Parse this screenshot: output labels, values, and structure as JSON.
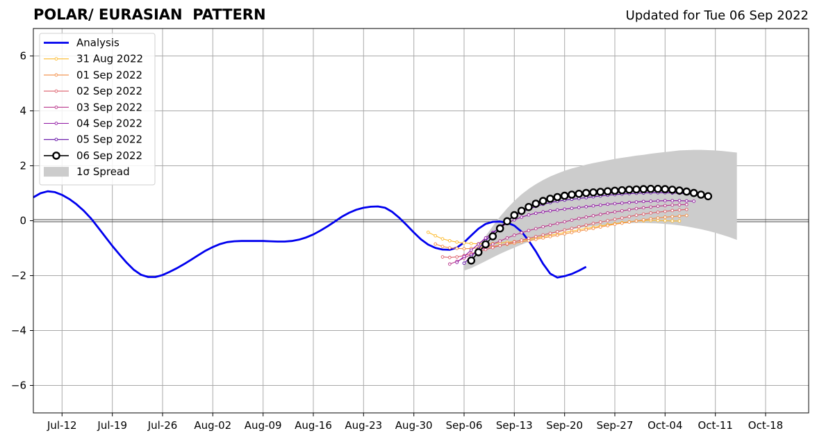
{
  "header": {
    "title": "POLAR/ EURASIAN  PATTERN",
    "updated": "Updated for Tue 06 Sep 2022"
  },
  "chart_data": {
    "type": "line",
    "title": "POLAR/ EURASIAN  PATTERN",
    "subtitle": "Updated for Tue 06 Sep 2022",
    "xlabel": "",
    "ylabel": "",
    "xlim": [
      "2022-07-08",
      "2022-10-24"
    ],
    "ylim": [
      -7,
      7
    ],
    "grid": true,
    "legend_position": "top-left",
    "x_ticks": [
      {
        "date": "2022-07-12",
        "label": "Jul-12"
      },
      {
        "date": "2022-07-19",
        "label": "Jul-19"
      },
      {
        "date": "2022-07-26",
        "label": "Jul-26"
      },
      {
        "date": "2022-08-02",
        "label": "Aug-02"
      },
      {
        "date": "2022-08-09",
        "label": "Aug-09"
      },
      {
        "date": "2022-08-16",
        "label": "Aug-16"
      },
      {
        "date": "2022-08-23",
        "label": "Aug-23"
      },
      {
        "date": "2022-08-30",
        "label": "Aug-30"
      },
      {
        "date": "2022-09-06",
        "label": "Sep-06"
      },
      {
        "date": "2022-09-13",
        "label": "Sep-13"
      },
      {
        "date": "2022-09-20",
        "label": "Sep-20"
      },
      {
        "date": "2022-09-27",
        "label": "Sep-27"
      },
      {
        "date": "2022-10-04",
        "label": "Oct-04"
      },
      {
        "date": "2022-10-11",
        "label": "Oct-11"
      },
      {
        "date": "2022-10-18",
        "label": "Oct-18"
      }
    ],
    "y_ticks": [
      {
        "value": 6,
        "label": "6"
      },
      {
        "value": 4,
        "label": "4"
      },
      {
        "value": 2,
        "label": "2"
      },
      {
        "value": 0,
        "label": "0"
      },
      {
        "value": -2,
        "label": "−2"
      },
      {
        "value": -4,
        "label": "−4"
      },
      {
        "value": -6,
        "label": "−6"
      }
    ],
    "legend": [
      {
        "label": "Analysis",
        "kind": "analysis",
        "color": "#0000ee"
      },
      {
        "label": "31 Aug 2022",
        "kind": "small",
        "color": "#fcb92a"
      },
      {
        "label": "01 Sep 2022",
        "kind": "small",
        "color": "#f28b42"
      },
      {
        "label": "02 Sep 2022",
        "kind": "small",
        "color": "#dc5b67"
      },
      {
        "label": "03 Sep 2022",
        "kind": "small",
        "color": "#b83289"
      },
      {
        "label": "04 Sep 2022",
        "kind": "small",
        "color": "#8e13a2"
      },
      {
        "label": "05 Sep 2022",
        "kind": "small",
        "color": "#5d05a2"
      },
      {
        "label": "06 Sep 2022",
        "kind": "big",
        "color": "#000000"
      },
      {
        "label": "1σ Spread",
        "kind": "spread",
        "color": "#cccccc"
      }
    ],
    "spread": {
      "name": "1σ Spread",
      "color": "#cccccc",
      "start": "2022-09-06",
      "upper": [
        -1.62,
        -1.3,
        -0.92,
        -0.56,
        -0.2,
        0.15,
        0.45,
        0.72,
        0.96,
        1.16,
        1.33,
        1.48,
        1.61,
        1.72,
        1.82,
        1.9,
        1.97,
        2.04,
        2.1,
        2.15,
        2.2,
        2.25,
        2.29,
        2.33,
        2.37,
        2.4,
        2.44,
        2.47,
        2.5,
        2.53,
        2.56,
        2.57,
        2.58,
        2.58,
        2.57,
        2.56,
        2.54,
        2.51,
        2.48
      ],
      "lower": [
        -1.82,
        -1.73,
        -1.6,
        -1.47,
        -1.34,
        -1.21,
        -1.09,
        -0.98,
        -0.87,
        -0.77,
        -0.67,
        -0.58,
        -0.5,
        -0.43,
        -0.37,
        -0.32,
        -0.27,
        -0.23,
        -0.2,
        -0.17,
        -0.14,
        -0.12,
        -0.1,
        -0.09,
        -0.08,
        -0.08,
        -0.09,
        -0.1,
        -0.12,
        -0.14,
        -0.17,
        -0.21,
        -0.26,
        -0.31,
        -0.37,
        -0.44,
        -0.52,
        -0.6,
        -0.7
      ]
    },
    "series": [
      {
        "name": "Analysis",
        "color": "#0000ee",
        "kind": "analysis",
        "start": "2022-07-08",
        "values": [
          0.85,
          1.0,
          1.07,
          1.04,
          0.94,
          0.79,
          0.6,
          0.37,
          0.09,
          -0.24,
          -0.58,
          -0.92,
          -1.23,
          -1.53,
          -1.79,
          -1.97,
          -2.05,
          -2.05,
          -1.98,
          -1.86,
          -1.73,
          -1.58,
          -1.42,
          -1.25,
          -1.09,
          -0.96,
          -0.85,
          -0.78,
          -0.75,
          -0.74,
          -0.74,
          -0.74,
          -0.74,
          -0.75,
          -0.76,
          -0.76,
          -0.74,
          -0.69,
          -0.61,
          -0.5,
          -0.36,
          -0.2,
          -0.03,
          0.15,
          0.29,
          0.4,
          0.47,
          0.51,
          0.52,
          0.47,
          0.32,
          0.1,
          -0.16,
          -0.43,
          -0.68,
          -0.87,
          -0.99,
          -1.05,
          -1.06,
          -0.98,
          -0.79,
          -0.54,
          -0.29,
          -0.12,
          -0.04,
          -0.03,
          -0.07,
          -0.18,
          -0.4,
          -0.73,
          -1.12,
          -1.57,
          -1.93,
          -2.07,
          -2.02,
          -1.94,
          -1.82,
          -1.68
        ]
      },
      {
        "name": "31 Aug 2022",
        "color": "#fcb92a",
        "kind": "small",
        "start": "2022-09-01",
        "values": [
          -0.42,
          -0.55,
          -0.66,
          -0.73,
          -0.78,
          -0.81,
          -0.83,
          -0.84,
          -0.84,
          -0.83,
          -0.81,
          -0.79,
          -0.76,
          -0.72,
          -0.68,
          -0.63,
          -0.58,
          -0.53,
          -0.48,
          -0.43,
          -0.38,
          -0.33,
          -0.28,
          -0.24,
          -0.19,
          -0.15,
          -0.11,
          -0.07,
          -0.04,
          -0.01,
          0.0,
          0.01,
          0.01,
          0.0,
          -0.01,
          -0.01
        ]
      },
      {
        "name": "01 Sep 2022",
        "color": "#f28b42",
        "kind": "small",
        "start": "2022-09-02",
        "values": [
          -0.85,
          -0.94,
          -0.99,
          -1.01,
          -1.02,
          -1.01,
          -0.99,
          -0.97,
          -0.94,
          -0.9,
          -0.86,
          -0.82,
          -0.77,
          -0.73,
          -0.68,
          -0.63,
          -0.58,
          -0.53,
          -0.48,
          -0.43,
          -0.38,
          -0.33,
          -0.28,
          -0.23,
          -0.18,
          -0.13,
          -0.09,
          -0.05,
          -0.01,
          0.03,
          0.07,
          0.1,
          0.13,
          0.15,
          0.17,
          0.19
        ]
      },
      {
        "name": "02 Sep 2022",
        "color": "#dc5b67",
        "kind": "small",
        "start": "2022-09-03",
        "values": [
          -1.32,
          -1.34,
          -1.32,
          -1.27,
          -1.2,
          -1.13,
          -1.05,
          -0.98,
          -0.91,
          -0.84,
          -0.77,
          -0.71,
          -0.64,
          -0.58,
          -0.52,
          -0.46,
          -0.4,
          -0.34,
          -0.28,
          -0.22,
          -0.16,
          -0.1,
          -0.05,
          0.0,
          0.05,
          0.1,
          0.15,
          0.2,
          0.24,
          0.28,
          0.31,
          0.34,
          0.37,
          0.39,
          0.41
        ]
      },
      {
        "name": "03 Sep 2022",
        "color": "#b83289",
        "kind": "small",
        "start": "2022-09-04",
        "values": [
          -1.58,
          -1.48,
          -1.36,
          -1.23,
          -1.1,
          -0.97,
          -0.85,
          -0.74,
          -0.63,
          -0.53,
          -0.44,
          -0.36,
          -0.29,
          -0.22,
          -0.16,
          -0.1,
          -0.04,
          0.02,
          0.08,
          0.13,
          0.18,
          0.23,
          0.28,
          0.32,
          0.36,
          0.4,
          0.44,
          0.47,
          0.5,
          0.53,
          0.55,
          0.57,
          0.58,
          0.59
        ]
      },
      {
        "name": "04 Sep 2022",
        "color": "#8e13a2",
        "kind": "small",
        "start": "2022-09-05",
        "values": [
          -1.52,
          -1.3,
          -1.07,
          -0.85,
          -0.63,
          -0.43,
          -0.25,
          -0.1,
          0.03,
          0.13,
          0.21,
          0.27,
          0.32,
          0.36,
          0.39,
          0.42,
          0.45,
          0.48,
          0.51,
          0.54,
          0.57,
          0.6,
          0.62,
          0.64,
          0.66,
          0.68,
          0.7,
          0.71,
          0.72,
          0.73,
          0.73,
          0.73,
          0.72,
          0.71
        ]
      },
      {
        "name": "05 Sep 2022",
        "color": "#5d05a2",
        "kind": "small",
        "start": "2022-09-06",
        "values": [
          -1.55,
          -1.3,
          -1.02,
          -0.73,
          -0.46,
          -0.22,
          -0.01,
          0.16,
          0.3,
          0.42,
          0.52,
          0.6,
          0.66,
          0.71,
          0.75,
          0.78,
          0.81,
          0.84,
          0.87,
          0.9,
          0.93,
          0.95,
          0.97,
          0.99,
          1.0,
          1.01,
          1.02,
          1.02,
          1.02,
          1.01,
          1.0,
          0.98,
          0.96,
          0.93,
          0.9
        ]
      },
      {
        "name": "06 Sep 2022",
        "color": "#000000",
        "kind": "big",
        "start": "2022-09-07",
        "values": [
          -1.45,
          -1.15,
          -0.86,
          -0.57,
          -0.28,
          -0.02,
          0.2,
          0.36,
          0.5,
          0.62,
          0.72,
          0.8,
          0.86,
          0.91,
          0.95,
          0.98,
          1.01,
          1.03,
          1.05,
          1.07,
          1.09,
          1.11,
          1.13,
          1.14,
          1.15,
          1.16,
          1.16,
          1.15,
          1.13,
          1.1,
          1.06,
          1.01,
          0.95,
          0.89
        ]
      }
    ]
  }
}
